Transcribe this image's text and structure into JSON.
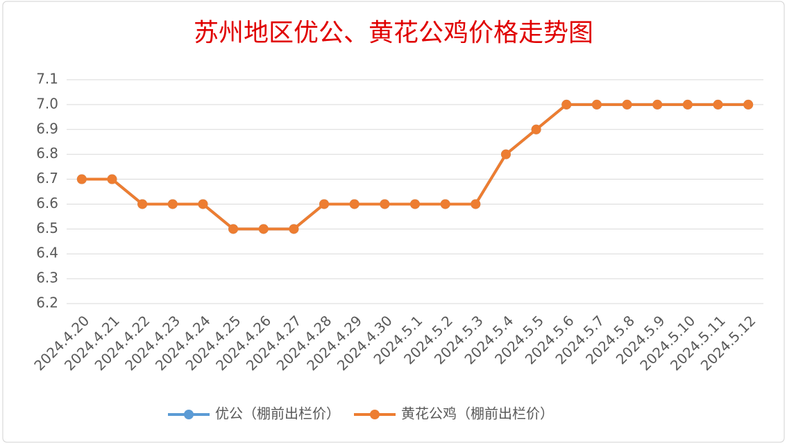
{
  "chart_data": {
    "type": "line",
    "title": "苏州地区优公、黄花公鸡价格走势图",
    "categories": [
      "2024.4.20",
      "2024.4.21",
      "2024.4.22",
      "2024.4.23",
      "2024.4.24",
      "2024.4.25",
      "2024.4.26",
      "2024.4.27",
      "2024.4.28",
      "2024.4.29",
      "2024.4.30",
      "2024.5.1",
      "2024.5.2",
      "2024.5.3",
      "2024.5.4",
      "2024.5.5",
      "2024.5.6",
      "2024.5.7",
      "2024.5.8",
      "2024.5.9",
      "2024.5.10",
      "2024.5.11",
      "2024.5.12"
    ],
    "series": [
      {
        "name": "优公（棚前出栏价）",
        "color": "#5b9bd5",
        "values": [
          6.7,
          6.7,
          6.6,
          6.6,
          6.6,
          6.5,
          6.5,
          6.5,
          6.6,
          6.6,
          6.6,
          6.6,
          6.6,
          6.6,
          6.8,
          6.9,
          7,
          7,
          7,
          7,
          7,
          7,
          7
        ]
      },
      {
        "name": "黄花公鸡（棚前出栏价）",
        "color": "#ed7d31",
        "values": [
          6.7,
          6.7,
          6.6,
          6.6,
          6.6,
          6.5,
          6.5,
          6.5,
          6.6,
          6.6,
          6.6,
          6.6,
          6.6,
          6.6,
          6.8,
          6.9,
          7,
          7,
          7,
          7,
          7,
          7,
          7
        ]
      }
    ],
    "ylim": [
      6.2,
      7.1
    ],
    "yticks": [
      6.2,
      6.3,
      6.4,
      6.5,
      6.6,
      6.7,
      6.8,
      6.9,
      {
        "value": 7,
        "label": "7.0"
      },
      7.1
    ],
    "grid": true,
    "legend": "bottom"
  }
}
